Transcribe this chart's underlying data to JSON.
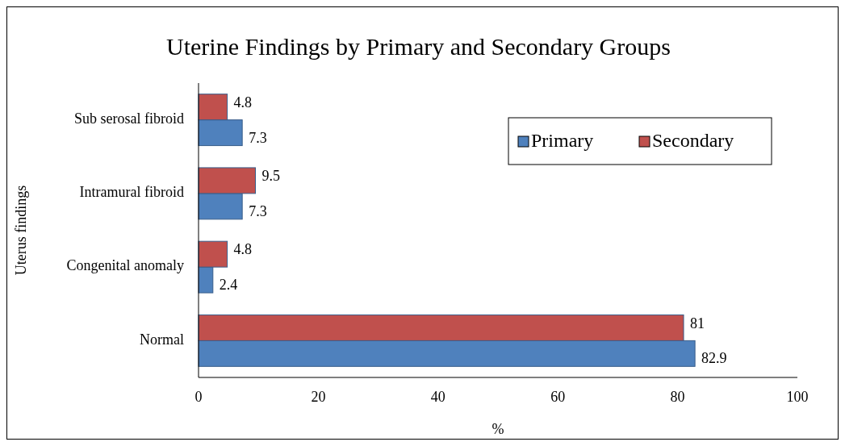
{
  "chart_data": {
    "type": "bar",
    "orientation": "horizontal",
    "title": "Uterine Findings by Primary and Secondary Groups",
    "xlabel": "%",
    "ylabel": "Uterus findings",
    "categories": [
      "Sub serosal fibroid",
      "Intramural fibroid",
      "Congenital anomaly",
      "Normal"
    ],
    "series": [
      {
        "name": "Primary",
        "color": "#4f81bd",
        "values": [
          7.3,
          7.3,
          2.4,
          82.9
        ]
      },
      {
        "name": "Secondary",
        "color": "#c0504d",
        "values": [
          4.8,
          9.5,
          4.8,
          81
        ]
      }
    ],
    "xlim": [
      0,
      100
    ],
    "xticks": [
      0,
      20,
      40,
      60,
      80,
      100
    ],
    "data_labels": true,
    "legend": "top right",
    "grid": false
  }
}
